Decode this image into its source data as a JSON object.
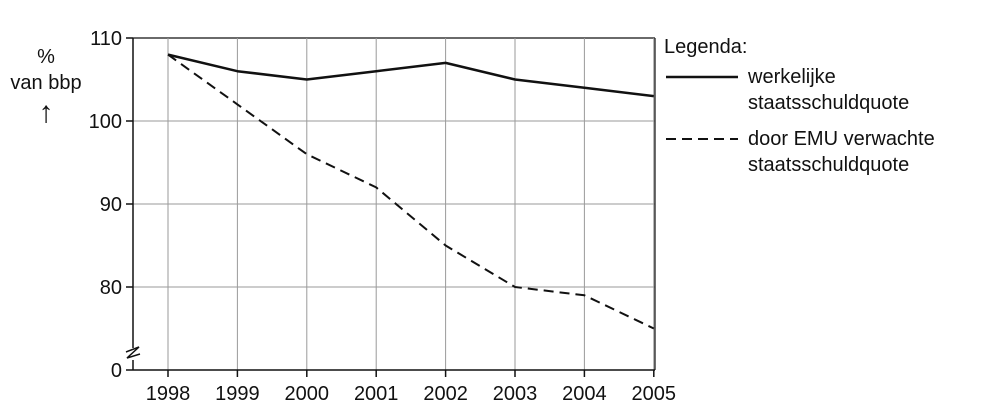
{
  "chart_data": {
    "type": "line",
    "ylabel_line1": "%",
    "ylabel_line2": "van bbp",
    "ylabel_arrow": "↑",
    "x": [
      "1998",
      "1999",
      "2000",
      "2001",
      "2002",
      "2003",
      "2004",
      "2005"
    ],
    "yticks": [
      "0",
      "80",
      "90",
      "100",
      "110"
    ],
    "ylim": [
      75,
      110
    ],
    "y_axis_break": true,
    "grid": true,
    "legend_title": "Legenda:",
    "legend_position": "right",
    "series": [
      {
        "name_line1": "werkelijke",
        "name_line2": "staatsschuldquote",
        "style": "solid",
        "values": [
          108,
          106,
          105,
          106,
          107,
          105,
          104,
          103
        ]
      },
      {
        "name_line1": "door EMU verwachte",
        "name_line2": "staatsschuldquote",
        "style": "dashed",
        "values": [
          108,
          102,
          96,
          92,
          85,
          80,
          79,
          75
        ]
      }
    ],
    "colors": {
      "line": "#111111",
      "grid": "#9a9a9a",
      "axis": "#111111"
    }
  }
}
